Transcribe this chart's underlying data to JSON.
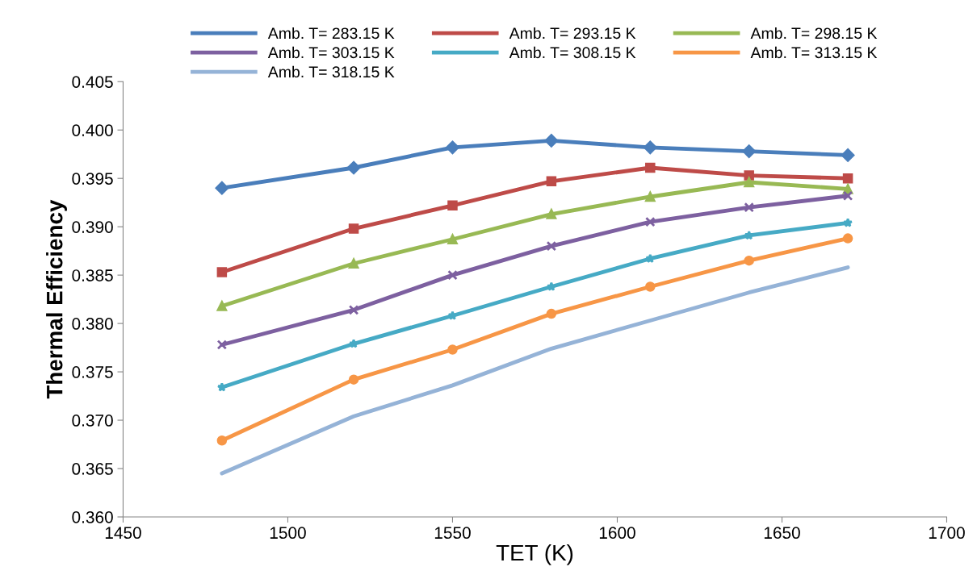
{
  "chart_data": {
    "type": "line",
    "xlabel": "TET (K)",
    "ylabel": "Thermal Efficiency",
    "x": [
      1480,
      1520,
      1550,
      1580,
      1610,
      1640,
      1670
    ],
    "xlim": [
      1450,
      1700
    ],
    "xticks": [
      1450,
      1500,
      1550,
      1600,
      1650,
      1700
    ],
    "ylim": [
      0.36,
      0.405
    ],
    "yticks": [
      {
        "value": 0.36,
        "label": "0.360"
      },
      {
        "value": 0.365,
        "label": "0.365"
      },
      {
        "value": 0.37,
        "label": "0.370"
      },
      {
        "value": 0.375,
        "label": "0.375"
      },
      {
        "value": 0.38,
        "label": "0.380"
      },
      {
        "value": 0.385,
        "label": "0.385"
      },
      {
        "value": 0.39,
        "label": "0.390"
      },
      {
        "value": 0.395,
        "label": "0.395"
      },
      {
        "value": 0.4,
        "label": "0.400"
      },
      {
        "value": 0.405,
        "label": "0.405"
      }
    ],
    "grid": false,
    "legend": "top",
    "line_style": "solid",
    "series": [
      {
        "name": "Amb. T= 283.15 K",
        "color": "#4a7ebb",
        "marker": "diamond",
        "values": [
          0.394,
          0.3961,
          0.3982,
          0.3989,
          0.3982,
          0.3978,
          0.3974
        ]
      },
      {
        "name": "Amb. T= 293.15 K",
        "color": "#be4b48",
        "marker": "square",
        "values": [
          0.3853,
          0.3898,
          0.3922,
          0.3947,
          0.3961,
          0.3953,
          0.395
        ]
      },
      {
        "name": "Amb. T= 298.15 K",
        "color": "#98b954",
        "marker": "triangle",
        "values": [
          0.3818,
          0.3862,
          0.3887,
          0.3913,
          0.3931,
          0.3946,
          0.3939
        ]
      },
      {
        "name": "Amb. T= 303.15 K",
        "color": "#7d60a0",
        "marker": "cross",
        "values": [
          0.3778,
          0.3814,
          0.385,
          0.388,
          0.3905,
          0.392,
          0.3932
        ]
      },
      {
        "name": "Amb. T= 308.15 K",
        "color": "#46aac5",
        "marker": "star",
        "values": [
          0.3734,
          0.3779,
          0.3808,
          0.3838,
          0.3867,
          0.3891,
          0.3904
        ]
      },
      {
        "name": "Amb. T= 313.15 K",
        "color": "#f79646",
        "marker": "circle",
        "values": [
          0.3679,
          0.3742,
          0.3773,
          0.381,
          0.3838,
          0.3865,
          0.3888
        ]
      },
      {
        "name": "Amb. T= 318.15 K",
        "color": "#95b3d7",
        "marker": "none",
        "values": [
          0.3645,
          0.3704,
          0.3736,
          0.3774,
          0.3803,
          0.3832,
          0.3858
        ]
      }
    ]
  }
}
